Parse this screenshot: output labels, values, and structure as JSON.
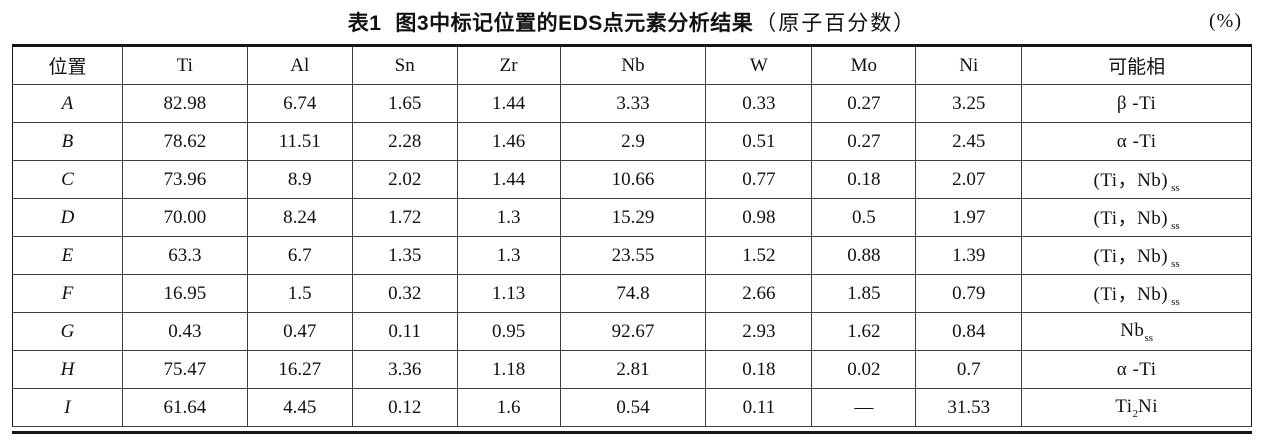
{
  "caption": {
    "table_number": "表1",
    "title_text": "图3中标记位置的EDS点元素分析结果",
    "paren_text": "（原子百分数）",
    "unit_label": "(%)"
  },
  "table": {
    "columns": [
      "位置",
      "Ti",
      "Al",
      "Sn",
      "Zr",
      "Nb",
      "W",
      "Mo",
      "Ni",
      "可能相"
    ],
    "rows": [
      {
        "pos": "A",
        "values": [
          "82.98",
          "6.74",
          "1.65",
          "1.44",
          "3.33",
          "0.33",
          "0.27",
          "3.25"
        ],
        "phase": {
          "pre": "β -Ti",
          "sub": "",
          "post": ""
        }
      },
      {
        "pos": "B",
        "values": [
          "78.62",
          "11.51",
          "2.28",
          "1.46",
          "2.9",
          "0.51",
          "0.27",
          "2.45"
        ],
        "phase": {
          "pre": "α -Ti",
          "sub": "",
          "post": ""
        }
      },
      {
        "pos": "C",
        "values": [
          "73.96",
          "8.9",
          "2.02",
          "1.44",
          "10.66",
          "0.77",
          "0.18",
          "2.07"
        ],
        "phase": {
          "pre": "(Ti，Nb)",
          "sub": "ss",
          "post": ""
        }
      },
      {
        "pos": "D",
        "values": [
          "70.00",
          "8.24",
          "1.72",
          "1.3",
          "15.29",
          "0.98",
          "0.5",
          "1.97"
        ],
        "phase": {
          "pre": "(Ti，Nb)",
          "sub": "ss",
          "post": ""
        }
      },
      {
        "pos": "E",
        "values": [
          "63.3",
          "6.7",
          "1.35",
          "1.3",
          "23.55",
          "1.52",
          "0.88",
          "1.39"
        ],
        "phase": {
          "pre": "(Ti，Nb)",
          "sub": "ss",
          "post": ""
        }
      },
      {
        "pos": "F",
        "values": [
          "16.95",
          "1.5",
          "0.32",
          "1.13",
          "74.8",
          "2.66",
          "1.85",
          "0.79"
        ],
        "phase": {
          "pre": "(Ti，Nb)",
          "sub": "ss",
          "post": ""
        }
      },
      {
        "pos": "G",
        "values": [
          "0.43",
          "0.47",
          "0.11",
          "0.95",
          "92.67",
          "2.93",
          "1.62",
          "0.84"
        ],
        "phase": {
          "pre": "Nb",
          "sub": "ss",
          "post": "",
          "tight": true
        }
      },
      {
        "pos": "H",
        "values": [
          "75.47",
          "16.27",
          "3.36",
          "1.18",
          "2.81",
          "0.18",
          "0.02",
          "0.7"
        ],
        "phase": {
          "pre": "α -Ti",
          "sub": "",
          "post": ""
        }
      },
      {
        "pos": "I",
        "values": [
          "61.64",
          "4.45",
          "0.12",
          "1.6",
          "0.54",
          "0.11",
          "—",
          "31.53"
        ],
        "phase": {
          "pre": "Ti",
          "sub": "2",
          "post": "Ni",
          "tight": true
        }
      }
    ]
  }
}
